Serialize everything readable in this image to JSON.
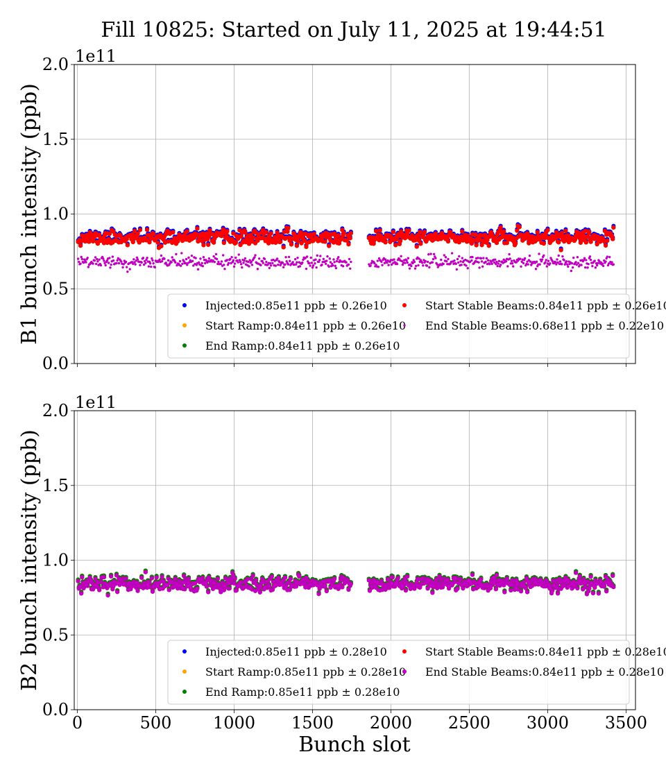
{
  "chart_data": {
    "type": "scatter",
    "title": "Fill 10825: Started on July 11, 2025 at 19:44:51",
    "xlabel": "Bunch slot",
    "x_ticks": [
      "0",
      "500",
      "1000",
      "1500",
      "2000",
      "2500",
      "3000",
      "3500"
    ],
    "xlim": [
      -20,
      3560
    ],
    "grid": true,
    "legend_position": "lower-right",
    "colors": {
      "injected": "#0000ff",
      "start_ramp": "#ffa500",
      "end_ramp": "#008000",
      "start_stable": "#ff0000",
      "end_stable": "#bf00bf"
    },
    "panels": [
      {
        "id": "B1",
        "ylabel": "B1 bunch intensity (ppb)",
        "y_offset_label": "1e11",
        "ylim": [
          0.0,
          2.0
        ],
        "y_ticks": [
          "0.0",
          "0.5",
          "1.0",
          "1.5",
          "2.0"
        ],
        "series": [
          {
            "name": "Injected:0.85e11 ppb ± 0.26e10",
            "key": "injected",
            "mean": 0.85,
            "std": 0.026,
            "seed": 11,
            "marker": "big"
          },
          {
            "name": "Start Ramp:0.84e11 ppb ± 0.26e10",
            "key": "start_ramp",
            "mean": 0.84,
            "std": 0.026,
            "seed": 11,
            "marker": "big"
          },
          {
            "name": "End Ramp:0.84e11 ppb ± 0.26e10",
            "key": "end_ramp",
            "mean": 0.84,
            "std": 0.026,
            "seed": 11,
            "marker": "big"
          },
          {
            "name": "Start Stable Beams:0.84e11 ppb ± 0.26e10",
            "key": "start_stable",
            "mean": 0.84,
            "std": 0.026,
            "seed": 11,
            "marker": "big"
          },
          {
            "name": "End Stable Beams:0.68e11 ppb ± 0.22e10",
            "key": "end_stable",
            "mean": 0.68,
            "std": 0.022,
            "seed": 29,
            "marker": "small"
          }
        ]
      },
      {
        "id": "B2",
        "ylabel": "B2 bunch intensity (ppb)",
        "y_offset_label": "1e11",
        "ylim": [
          0.0,
          2.0
        ],
        "y_ticks": [
          "0.0",
          "0.5",
          "1.0",
          "1.5",
          "2.0"
        ],
        "series": [
          {
            "name": "Injected:0.85e11 ppb ± 0.28e10",
            "key": "injected",
            "mean": 0.85,
            "std": 0.028,
            "seed": 47,
            "marker": "big"
          },
          {
            "name": "Start Ramp:0.85e11 ppb ± 0.28e10",
            "key": "start_ramp",
            "mean": 0.85,
            "std": 0.028,
            "seed": 47,
            "marker": "big"
          },
          {
            "name": "End Ramp:0.85e11 ppb ± 0.28e10",
            "key": "end_ramp",
            "mean": 0.85,
            "std": 0.028,
            "seed": 47,
            "marker": "big"
          },
          {
            "name": "Start Stable Beams:0.84e11 ppb ± 0.28e10",
            "key": "start_stable",
            "mean": 0.84,
            "std": 0.028,
            "seed": 47,
            "marker": "big"
          },
          {
            "name": "End Stable Beams:0.84e11 ppb ± 0.28e10",
            "key": "end_stable",
            "mean": 0.84,
            "std": 0.028,
            "seed": 47,
            "marker": "big"
          }
        ]
      }
    ]
  }
}
